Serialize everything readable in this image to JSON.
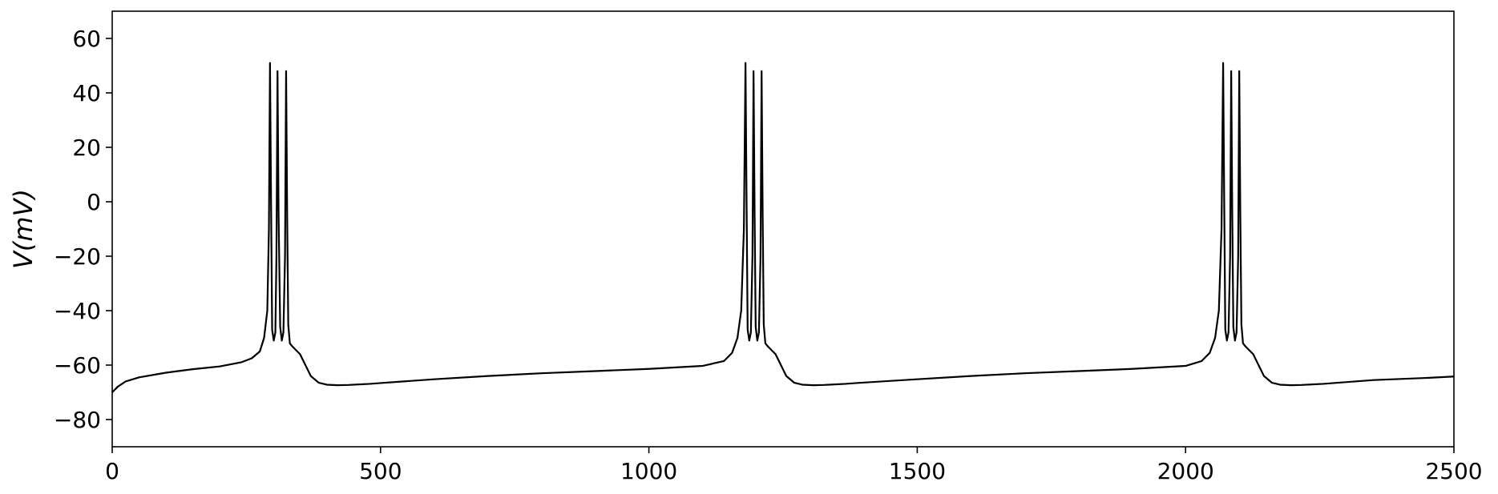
{
  "chart_data": {
    "type": "line",
    "title": "",
    "xlabel": "",
    "ylabel": "V(mV)",
    "xlim": [
      0,
      2500
    ],
    "ylim": [
      -90,
      70
    ],
    "xticks": [
      0,
      500,
      1000,
      1500,
      2000,
      2500
    ],
    "xtick_labels": [
      "0",
      "500",
      "1000",
      "1500",
      "2000",
      "2500"
    ],
    "yticks": [
      -80,
      -60,
      -40,
      -20,
      0,
      20,
      40,
      60
    ],
    "ytick_labels": [
      "−80",
      "−60",
      "−40",
      "−20",
      "0",
      "20",
      "40",
      "60"
    ],
    "grid": false,
    "line_color": "#000000",
    "series": [
      {
        "x": [
          0,
          10,
          25,
          50,
          100,
          150,
          200,
          240,
          260,
          275,
          283,
          289,
          292,
          294,
          296,
          298,
          301,
          304,
          306,
          308,
          310,
          313,
          316,
          319,
          322,
          324,
          326,
          328,
          331,
          335,
          340,
          350,
          360,
          370,
          385,
          400,
          420,
          440,
          460,
          480,
          500,
          600,
          700,
          800,
          900,
          1000,
          1100,
          1140,
          1155,
          1165,
          1172,
          1177,
          1180,
          1182,
          1184,
          1187,
          1190,
          1193,
          1195,
          1197,
          1199,
          1202,
          1205,
          1208,
          1210,
          1212,
          1214,
          1217,
          1221,
          1226,
          1236,
          1246,
          1256,
          1271,
          1286,
          1306,
          1326,
          1346,
          1366,
          1386,
          1500,
          1600,
          1700,
          1800,
          1900,
          2000,
          2030,
          2045,
          2055,
          2062,
          2067,
          2070,
          2072,
          2074,
          2077,
          2080,
          2083,
          2085,
          2087,
          2089,
          2092,
          2095,
          2098,
          2100,
          2102,
          2104,
          2107,
          2111,
          2116,
          2126,
          2136,
          2146,
          2161,
          2176,
          2196,
          2216,
          2236,
          2256,
          2276,
          2350,
          2450,
          2500
        ],
        "y": [
          -70,
          -68,
          -66,
          -64.5,
          -62.8,
          -61.5,
          -60.5,
          -59,
          -57.5,
          -55,
          -50,
          -40,
          -10,
          51,
          0,
          -47,
          -51,
          -48,
          -20,
          48,
          -5,
          -46,
          -51,
          -48,
          -20,
          48,
          -5,
          -45,
          -52,
          -53,
          -54,
          -56,
          -60,
          -64,
          -66.5,
          -67.2,
          -67.4,
          -67.3,
          -67.1,
          -66.9,
          -66.6,
          -65.2,
          -64,
          -63,
          -62.2,
          -61.4,
          -60.3,
          -58.5,
          -55.5,
          -50,
          -40,
          -10,
          51,
          0,
          -47,
          -51,
          -48,
          -20,
          48,
          -5,
          -46,
          -51,
          -48,
          -20,
          48,
          -5,
          -45,
          -52,
          -53,
          -54,
          -56,
          -60,
          -64,
          -66.5,
          -67.2,
          -67.4,
          -67.3,
          -67.1,
          -66.9,
          -66.6,
          -65.2,
          -64,
          -63,
          -62.2,
          -61.4,
          -60.3,
          -58.5,
          -55.5,
          -50,
          -40,
          -10,
          51,
          0,
          -47,
          -51,
          -48,
          -20,
          48,
          -5,
          -46,
          -51,
          -48,
          -20,
          48,
          -5,
          -45,
          -52,
          -53,
          -54,
          -56,
          -60,
          -64,
          -66.5,
          -67.2,
          -67.4,
          -67.3,
          -67.1,
          -66.9,
          -66.6,
          -65.5,
          -64.7,
          -64.2
        ]
      }
    ]
  }
}
